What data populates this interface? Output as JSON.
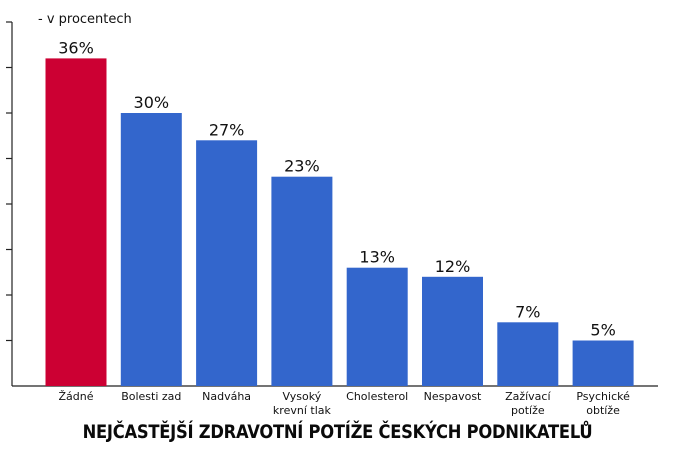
{
  "chart_data": {
    "type": "bar",
    "title": "NEJČASTĚJŠÍ ZDRAVOTNÍ POTÍŽE ČESKÝCH PODNIKATELŮ",
    "unit_label": "- v procentech",
    "categories": [
      "Žádné",
      "Bolesti zad",
      "Nadváha",
      "Vysoký krevní tlak",
      "Cholesterol",
      "Nespavost",
      "Zažívací potíže",
      "Psychické obtíže"
    ],
    "category_lines": [
      [
        "Žádné"
      ],
      [
        "Bolesti zad"
      ],
      [
        "Nadváha"
      ],
      [
        "Vysoký",
        "krevní tlak"
      ],
      [
        "Cholesterol"
      ],
      [
        "Nespavost"
      ],
      [
        "Zažívací",
        "potíže"
      ],
      [
        "Psychické",
        "obtíže"
      ]
    ],
    "values": [
      36,
      30,
      27,
      23,
      13,
      12,
      7,
      5
    ],
    "value_labels": [
      "36%",
      "30%",
      "27%",
      "23%",
      "13%",
      "12%",
      "7%",
      "5%"
    ],
    "bar_colors": [
      "#cc0033",
      "#3366cc",
      "#3366cc",
      "#3366cc",
      "#3366cc",
      "#3366cc",
      "#3366cc",
      "#3366cc"
    ],
    "ylim": [
      0,
      40
    ],
    "grid": false,
    "legend": "none"
  }
}
